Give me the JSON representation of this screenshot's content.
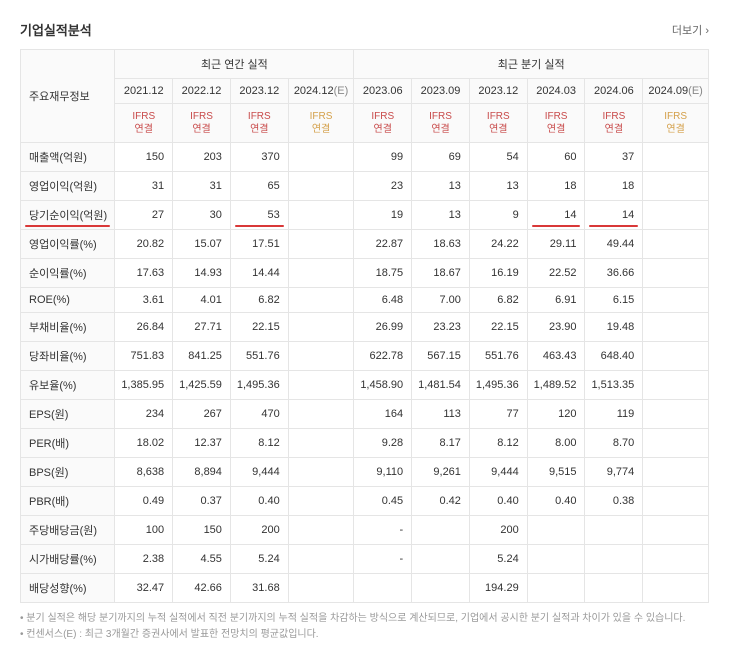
{
  "title": "기업실적분석",
  "more": "더보기",
  "group_annual": "최근 연간 실적",
  "group_quarter": "최근 분기 실적",
  "main_header": "주요재무정보",
  "ifrs_label": "IFRS\n연결",
  "periods": {
    "annual": [
      "2021.12",
      "2022.12",
      "2023.12",
      "2024.12(E)"
    ],
    "quarter": [
      "2023.06",
      "2023.09",
      "2023.12",
      "2024.03",
      "2024.06",
      "2024.09(E)"
    ]
  },
  "rows": [
    {
      "label": "매출액(억원)",
      "a": [
        "150",
        "203",
        "370",
        ""
      ],
      "q": [
        "99",
        "69",
        "54",
        "60",
        "37",
        ""
      ]
    },
    {
      "label": "영업이익(억원)",
      "a": [
        "31",
        "31",
        "65",
        ""
      ],
      "q": [
        "23",
        "13",
        "13",
        "18",
        "18",
        ""
      ]
    },
    {
      "label": "당기순이익(억원)",
      "a": [
        "27",
        "30",
        "53",
        ""
      ],
      "q": [
        "19",
        "13",
        "9",
        "14",
        "14",
        ""
      ],
      "label_red": true,
      "a_red": [
        false,
        false,
        true,
        false
      ],
      "q_red": [
        false,
        false,
        false,
        true,
        true,
        false
      ]
    },
    {
      "label": "영업이익률(%)",
      "a": [
        "20.82",
        "15.07",
        "17.51",
        ""
      ],
      "q": [
        "22.87",
        "18.63",
        "24.22",
        "29.11",
        "49.44",
        ""
      ]
    },
    {
      "label": "순이익률(%)",
      "a": [
        "17.63",
        "14.93",
        "14.44",
        ""
      ],
      "q": [
        "18.75",
        "18.67",
        "16.19",
        "22.52",
        "36.66",
        ""
      ]
    },
    {
      "label": "ROE(%)",
      "a": [
        "3.61",
        "4.01",
        "6.82",
        ""
      ],
      "q": [
        "6.48",
        "7.00",
        "6.82",
        "6.91",
        "6.15",
        ""
      ]
    },
    {
      "label": "부채비율(%)",
      "a": [
        "26.84",
        "27.71",
        "22.15",
        ""
      ],
      "q": [
        "26.99",
        "23.23",
        "22.15",
        "23.90",
        "19.48",
        ""
      ]
    },
    {
      "label": "당좌비율(%)",
      "a": [
        "751.83",
        "841.25",
        "551.76",
        ""
      ],
      "q": [
        "622.78",
        "567.15",
        "551.76",
        "463.43",
        "648.40",
        ""
      ]
    },
    {
      "label": "유보율(%)",
      "a": [
        "1,385.95",
        "1,425.59",
        "1,495.36",
        ""
      ],
      "q": [
        "1,458.90",
        "1,481.54",
        "1,495.36",
        "1,489.52",
        "1,513.35",
        ""
      ]
    },
    {
      "label": "EPS(원)",
      "a": [
        "234",
        "267",
        "470",
        ""
      ],
      "q": [
        "164",
        "113",
        "77",
        "120",
        "119",
        ""
      ]
    },
    {
      "label": "PER(배)",
      "a": [
        "18.02",
        "12.37",
        "8.12",
        ""
      ],
      "q": [
        "9.28",
        "8.17",
        "8.12",
        "8.00",
        "8.70",
        ""
      ]
    },
    {
      "label": "BPS(원)",
      "a": [
        "8,638",
        "8,894",
        "9,444",
        ""
      ],
      "q": [
        "9,110",
        "9,261",
        "9,444",
        "9,515",
        "9,774",
        ""
      ]
    },
    {
      "label": "PBR(배)",
      "a": [
        "0.49",
        "0.37",
        "0.40",
        ""
      ],
      "q": [
        "0.45",
        "0.42",
        "0.40",
        "0.40",
        "0.38",
        ""
      ]
    },
    {
      "label": "주당배당금(원)",
      "a": [
        "100",
        "150",
        "200",
        ""
      ],
      "q": [
        "-",
        "",
        "200",
        "",
        "",
        ""
      ]
    },
    {
      "label": "시가배당률(%)",
      "a": [
        "2.38",
        "4.55",
        "5.24",
        ""
      ],
      "q": [
        "-",
        "",
        "5.24",
        "",
        "",
        ""
      ]
    },
    {
      "label": "배당성향(%)",
      "a": [
        "32.47",
        "42.66",
        "31.68",
        ""
      ],
      "q": [
        "",
        "",
        "194.29",
        "",
        "",
        ""
      ]
    }
  ],
  "footnotes": [
    "분기 실적은 해당 분기까지의 누적 실적에서 직전 분기까지의 누적 실적을 차감하는 방식으로 계산되므로, 기업에서 공시한 분기 실적과 차이가 있을 수 있습니다.",
    "컨센서스(E) : 최근 3개월간 증권사에서 발표한 전망치의 평균값입니다."
  ],
  "colors": {
    "border": "#e5e5e5",
    "header_bg": "#fafafa",
    "ifrs": "#c84a4a",
    "ifrs_est": "#d4a04a",
    "red_underline": "#d93838",
    "text": "#333",
    "footnote": "#999"
  }
}
